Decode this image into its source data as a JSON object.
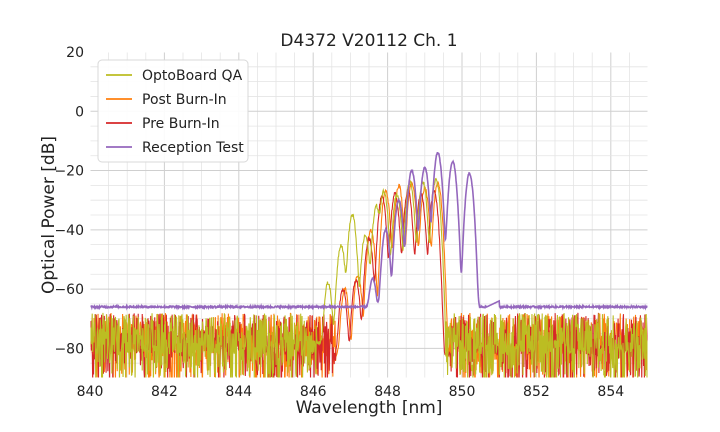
{
  "chart_data": {
    "type": "line",
    "title": "D4372 V20112 Ch. 1",
    "xlabel": "Wavelength [nm]",
    "ylabel": "Optical Power [dB]",
    "xlim": [
      840,
      855
    ],
    "ylim": [
      -90,
      20
    ],
    "xticks": [
      840,
      842,
      844,
      846,
      848,
      850,
      852,
      854
    ],
    "yticks": [
      -80,
      -60,
      -40,
      -20,
      0,
      20
    ],
    "ytick_labels": [
      "−80",
      "−60",
      "−40",
      "−20",
      "0",
      "20"
    ],
    "xtick_labels": [
      "840",
      "842",
      "844",
      "846",
      "848",
      "850",
      "852",
      "854"
    ],
    "grid": true,
    "legend_position": "top-left",
    "series": [
      {
        "name": "OptoBoard QA",
        "color": "#bcbd22",
        "noise_floor": true,
        "baseline": -78,
        "peaks": [
          {
            "x": 846.4,
            "y": -58
          },
          {
            "x": 846.75,
            "y": -45
          },
          {
            "x": 847.05,
            "y": -35
          },
          {
            "x": 847.4,
            "y": -42
          },
          {
            "x": 847.7,
            "y": -32
          },
          {
            "x": 847.9,
            "y": -27
          },
          {
            "x": 848.25,
            "y": -28
          },
          {
            "x": 848.6,
            "y": -24
          },
          {
            "x": 848.95,
            "y": -24
          },
          {
            "x": 849.3,
            "y": -23
          }
        ],
        "range": [
          846.1,
          849.55
        ]
      },
      {
        "name": "Post Burn-In",
        "color": "#ff7f0e",
        "noise_floor": true,
        "baseline": -82,
        "peaks": [
          {
            "x": 846.85,
            "y": -60
          },
          {
            "x": 847.2,
            "y": -55
          },
          {
            "x": 847.55,
            "y": -40
          },
          {
            "x": 847.95,
            "y": -27
          },
          {
            "x": 848.3,
            "y": -25
          },
          {
            "x": 848.65,
            "y": -24
          },
          {
            "x": 849.0,
            "y": -26
          },
          {
            "x": 849.35,
            "y": -24
          }
        ],
        "range": [
          846.6,
          849.65
        ]
      },
      {
        "name": "Pre Burn-In",
        "color": "#d62728",
        "noise_floor": true,
        "baseline": -82,
        "peaks": [
          {
            "x": 846.8,
            "y": -60
          },
          {
            "x": 847.15,
            "y": -57
          },
          {
            "x": 847.5,
            "y": -43
          },
          {
            "x": 847.85,
            "y": -29
          },
          {
            "x": 848.2,
            "y": -28
          },
          {
            "x": 848.55,
            "y": -27
          },
          {
            "x": 848.9,
            "y": -28
          },
          {
            "x": 849.25,
            "y": -27
          }
        ],
        "range": [
          846.6,
          849.7
        ]
      },
      {
        "name": "Reception Test",
        "color": "#9467bd",
        "noise_floor": false,
        "baseline": -66,
        "peaks": [
          {
            "x": 847.6,
            "y": -57
          },
          {
            "x": 847.95,
            "y": -40
          },
          {
            "x": 848.3,
            "y": -30
          },
          {
            "x": 848.65,
            "y": -20
          },
          {
            "x": 849.0,
            "y": -19
          },
          {
            "x": 849.35,
            "y": -14
          },
          {
            "x": 849.75,
            "y": -17
          },
          {
            "x": 850.2,
            "y": -21
          }
        ],
        "range": [
          846.6,
          850.5
        ]
      }
    ]
  }
}
